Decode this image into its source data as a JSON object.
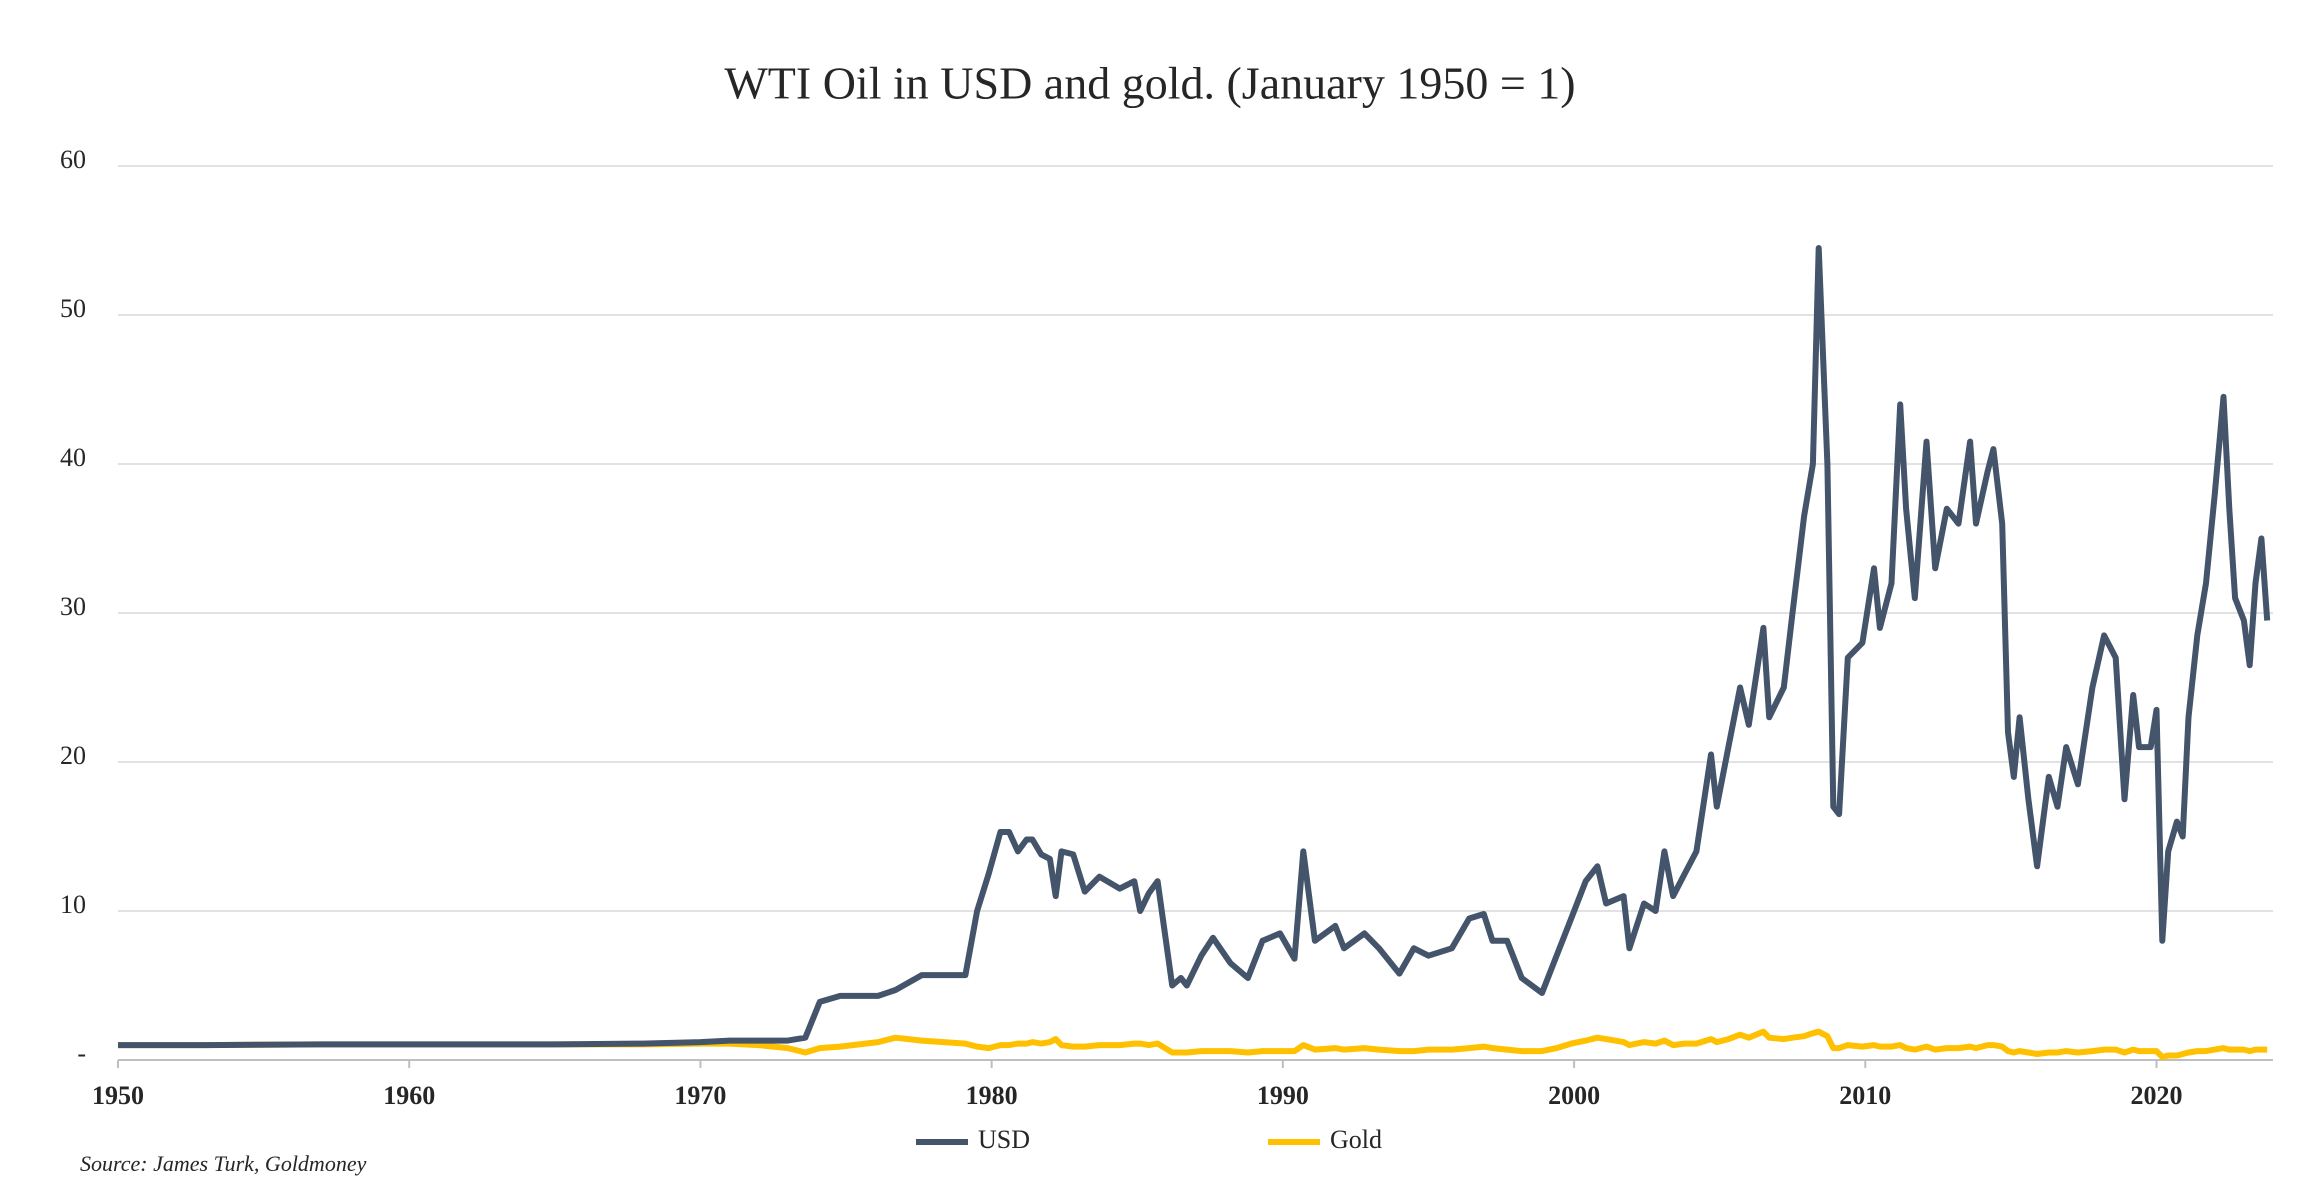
{
  "chart_data": {
    "type": "line",
    "title": "WTI Oil in USD and gold. (January 1950 = 1)",
    "source": "Source: James Turk, Goldmoney",
    "x": [
      1950,
      1953,
      1957,
      1960,
      1965,
      1968,
      1970,
      1971,
      1972,
      1973,
      1973.6,
      1974.1,
      1974.8,
      1976.1,
      1976.7,
      1977.6,
      1979.1,
      1979.5,
      1979.9,
      1980.3,
      1980.6,
      1980.9,
      1981.2,
      1981.4,
      1981.7,
      1982,
      1982.2,
      1982.4,
      1982.8,
      1983.2,
      1983.7,
      1984.4,
      1984.9,
      1985.1,
      1985.4,
      1985.7,
      1986.2,
      1986.5,
      1986.7,
      1987.2,
      1987.6,
      1988.2,
      1988.8,
      1989.3,
      1989.9,
      1990.4,
      1990.7,
      1991.1,
      1991.8,
      1992.1,
      1992.8,
      1993.3,
      1994,
      1994.5,
      1995,
      1995.8,
      1996.4,
      1996.9,
      1997.2,
      1997.7,
      1998.2,
      1998.9,
      1999.4,
      1999.9,
      2000.4,
      2000.8,
      2001.1,
      2001.7,
      2001.9,
      2002.4,
      2002.8,
      2003.1,
      2003.4,
      2003.8,
      2004.2,
      2004.7,
      2004.9,
      2005.3,
      2005.7,
      2006,
      2006.5,
      2006.7,
      2007.2,
      2007.5,
      2007.9,
      2008.2,
      2008.4,
      2008.7,
      2008.9,
      2009.1,
      2009.4,
      2009.9,
      2010.3,
      2010.5,
      2010.9,
      2011.2,
      2011.4,
      2011.7,
      2012.1,
      2012.4,
      2012.8,
      2013.2,
      2013.6,
      2013.8,
      2014.2,
      2014.4,
      2014.7,
      2014.9,
      2015.1,
      2015.3,
      2015.6,
      2015.9,
      2016.3,
      2016.6,
      2016.9,
      2017.3,
      2017.8,
      2018.2,
      2018.6,
      2018.9,
      2019.2,
      2019.4,
      2019.8,
      2020,
      2020.2,
      2020.4,
      2020.7,
      2020.9,
      2021.1,
      2021.4,
      2021.7,
      2022,
      2022.3,
      2022.5,
      2022.7,
      2023,
      2023.2,
      2023.4,
      2023.6,
      2023.8
    ],
    "series": [
      {
        "name": "USD",
        "color": "#44546a",
        "values": [
          1,
          1,
          1.05,
          1.05,
          1.05,
          1.1,
          1.2,
          1.3,
          1.3,
          1.3,
          1.5,
          3.9,
          4.3,
          4.3,
          4.7,
          5.7,
          5.7,
          10,
          12.5,
          15.3,
          15.3,
          14,
          14.8,
          14.8,
          13.8,
          13.5,
          11,
          14,
          13.8,
          11.3,
          12.3,
          11.5,
          12,
          10,
          11.2,
          12,
          5,
          5.5,
          5,
          7,
          8.2,
          6.5,
          5.5,
          8,
          8.5,
          6.8,
          14,
          8,
          9,
          7.5,
          8.5,
          7.5,
          5.8,
          7.5,
          7,
          7.5,
          9.5,
          9.8,
          8,
          8,
          5.5,
          4.5,
          7,
          9.5,
          12,
          13,
          10.5,
          11,
          7.5,
          10.5,
          10,
          14,
          11,
          12.5,
          14,
          20.5,
          17,
          21,
          25,
          22.5,
          29,
          23,
          25,
          30,
          36.5,
          40,
          54.5,
          40,
          17,
          16.5,
          27,
          28,
          33,
          29,
          32,
          44,
          37,
          31,
          41.5,
          33,
          37,
          36,
          41.5,
          36,
          39.5,
          41,
          36,
          22,
          19,
          23,
          17.5,
          13,
          19,
          17,
          21,
          18.5,
          25,
          28.5,
          27,
          17.5,
          24.5,
          21,
          21,
          23.5,
          8,
          14,
          16,
          15,
          23,
          28.5,
          32,
          38,
          44.5,
          37,
          31,
          29.5,
          26.5,
          32,
          35,
          29.5
        ]
      },
      {
        "name": "Gold",
        "color": "#ffc000",
        "values": [
          1,
          1,
          1.05,
          1.05,
          1.05,
          1.05,
          1.1,
          1.1,
          1.0,
          0.8,
          0.5,
          0.8,
          0.9,
          1.2,
          1.5,
          1.3,
          1.1,
          0.9,
          0.8,
          1.0,
          1.0,
          1.1,
          1.1,
          1.2,
          1.1,
          1.2,
          1.4,
          1.0,
          0.9,
          0.9,
          1.0,
          1.0,
          1.1,
          1.1,
          1.0,
          1.1,
          0.5,
          0.5,
          0.5,
          0.6,
          0.6,
          0.6,
          0.5,
          0.6,
          0.6,
          0.6,
          1.0,
          0.7,
          0.8,
          0.7,
          0.8,
          0.7,
          0.6,
          0.6,
          0.7,
          0.7,
          0.8,
          0.9,
          0.8,
          0.7,
          0.6,
          0.6,
          0.8,
          1.1,
          1.3,
          1.5,
          1.4,
          1.2,
          1.0,
          1.2,
          1.1,
          1.3,
          1.0,
          1.1,
          1.1,
          1.4,
          1.2,
          1.4,
          1.7,
          1.5,
          1.9,
          1.5,
          1.4,
          1.5,
          1.6,
          1.8,
          1.9,
          1.6,
          0.8,
          0.8,
          1.0,
          0.9,
          1.0,
          0.9,
          0.9,
          1.0,
          0.8,
          0.7,
          0.9,
          0.7,
          0.8,
          0.8,
          0.9,
          0.8,
          1.0,
          1.0,
          0.9,
          0.6,
          0.5,
          0.6,
          0.5,
          0.4,
          0.5,
          0.5,
          0.6,
          0.5,
          0.6,
          0.7,
          0.7,
          0.5,
          0.7,
          0.6,
          0.6,
          0.6,
          0.2,
          0.3,
          0.3,
          0.4,
          0.5,
          0.6,
          0.6,
          0.7,
          0.8,
          0.7,
          0.7,
          0.7,
          0.6,
          0.7,
          0.7,
          0.7
        ]
      }
    ],
    "xlim": [
      1950,
      2024
    ],
    "xticks": [
      1950,
      1960,
      1970,
      1980,
      1990,
      2000,
      2010,
      2020
    ],
    "ylim": [
      0,
      60
    ],
    "yticks": [
      {
        "value": 0,
        "label": "-"
      },
      10,
      20,
      30,
      40,
      50,
      60
    ],
    "grid": true,
    "legend": "bottom"
  }
}
